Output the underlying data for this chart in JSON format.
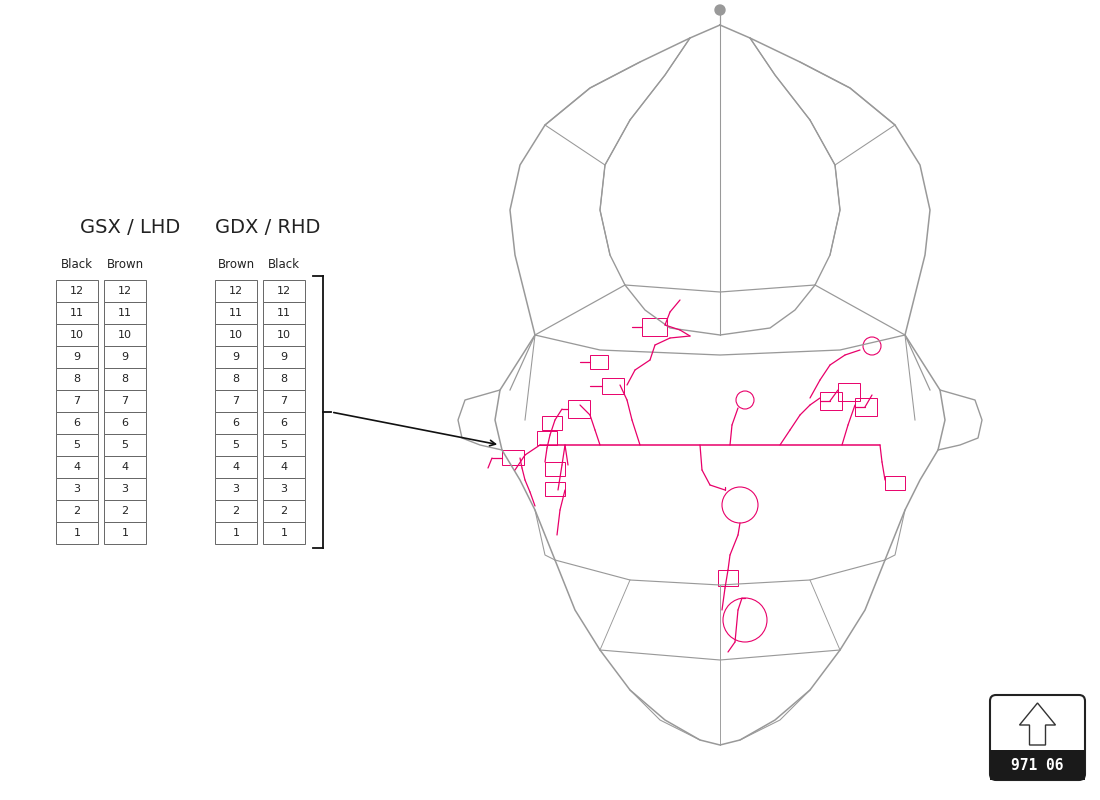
{
  "bg_color": "#ffffff",
  "title_gsx": "GSX / LHD",
  "title_gdx": "GDX / RHD",
  "col_headers_gsx": [
    "Black",
    "Brown"
  ],
  "col_headers_gdx": [
    "Brown",
    "Black"
  ],
  "rows": [
    12,
    11,
    10,
    9,
    8,
    7,
    6,
    5,
    4,
    3,
    2,
    1
  ],
  "part_number": "971 06",
  "table_border_color": "#666666",
  "text_color": "#222222",
  "car_line_color": "#999999",
  "wiring_color": "#e8006a",
  "arrow_color": "#111111"
}
